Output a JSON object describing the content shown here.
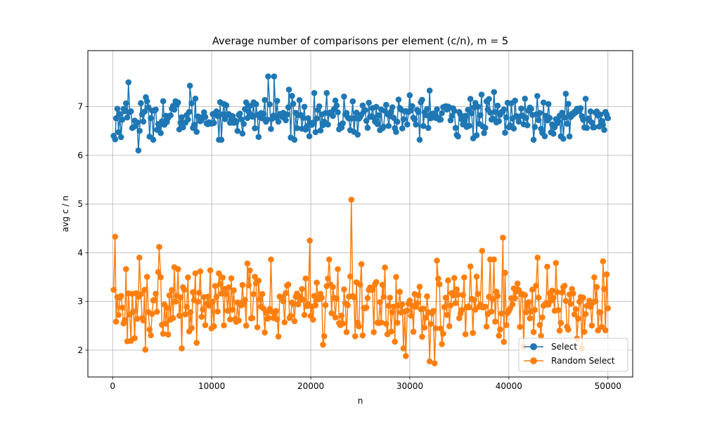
{
  "chart_data": {
    "type": "line",
    "title": "Average number of comparisons per element (c/n), m = 5",
    "xlabel": "n",
    "ylabel": "avg c / n",
    "xlim": [
      -2500,
      52500
    ],
    "ylim": [
      1.45,
      8.15
    ],
    "xticks": [
      0,
      10000,
      20000,
      30000,
      40000,
      50000
    ],
    "yticks": [
      2,
      3,
      4,
      5,
      6,
      7
    ],
    "grid": true,
    "legend_position": "lower right",
    "x_range": [
      100,
      50000
    ],
    "point_count": 400,
    "series": [
      {
        "name": "Select",
        "color": "#1f77b4",
        "marker": "circle",
        "mean": 6.8,
        "spread": 0.2,
        "notable_points": [
          {
            "x": 100,
            "y": 6.4
          },
          {
            "x": 250,
            "y": 6.33
          },
          {
            "x": 1600,
            "y": 7.5
          },
          {
            "x": 2600,
            "y": 6.1
          },
          {
            "x": 7800,
            "y": 7.43
          },
          {
            "x": 15700,
            "y": 7.62
          },
          {
            "x": 16300,
            "y": 7.62
          },
          {
            "x": 17800,
            "y": 7.35
          },
          {
            "x": 32000,
            "y": 7.33
          },
          {
            "x": 36400,
            "y": 6.35
          },
          {
            "x": 38500,
            "y": 7.3
          }
        ]
      },
      {
        "name": "Random Select",
        "color": "#ff7f0e",
        "marker": "circle",
        "mean": 2.95,
        "spread": 0.38,
        "notable_points": [
          {
            "x": 100,
            "y": 3.24
          },
          {
            "x": 250,
            "y": 4.33
          },
          {
            "x": 2700,
            "y": 3.9
          },
          {
            "x": 3300,
            "y": 2.01
          },
          {
            "x": 4700,
            "y": 4.12
          },
          {
            "x": 19900,
            "y": 4.25
          },
          {
            "x": 24100,
            "y": 5.09
          },
          {
            "x": 29600,
            "y": 1.88
          },
          {
            "x": 32000,
            "y": 1.77
          },
          {
            "x": 32500,
            "y": 1.73
          },
          {
            "x": 37300,
            "y": 4.04
          },
          {
            "x": 39400,
            "y": 4.31
          },
          {
            "x": 42900,
            "y": 3.9
          }
        ]
      }
    ]
  }
}
